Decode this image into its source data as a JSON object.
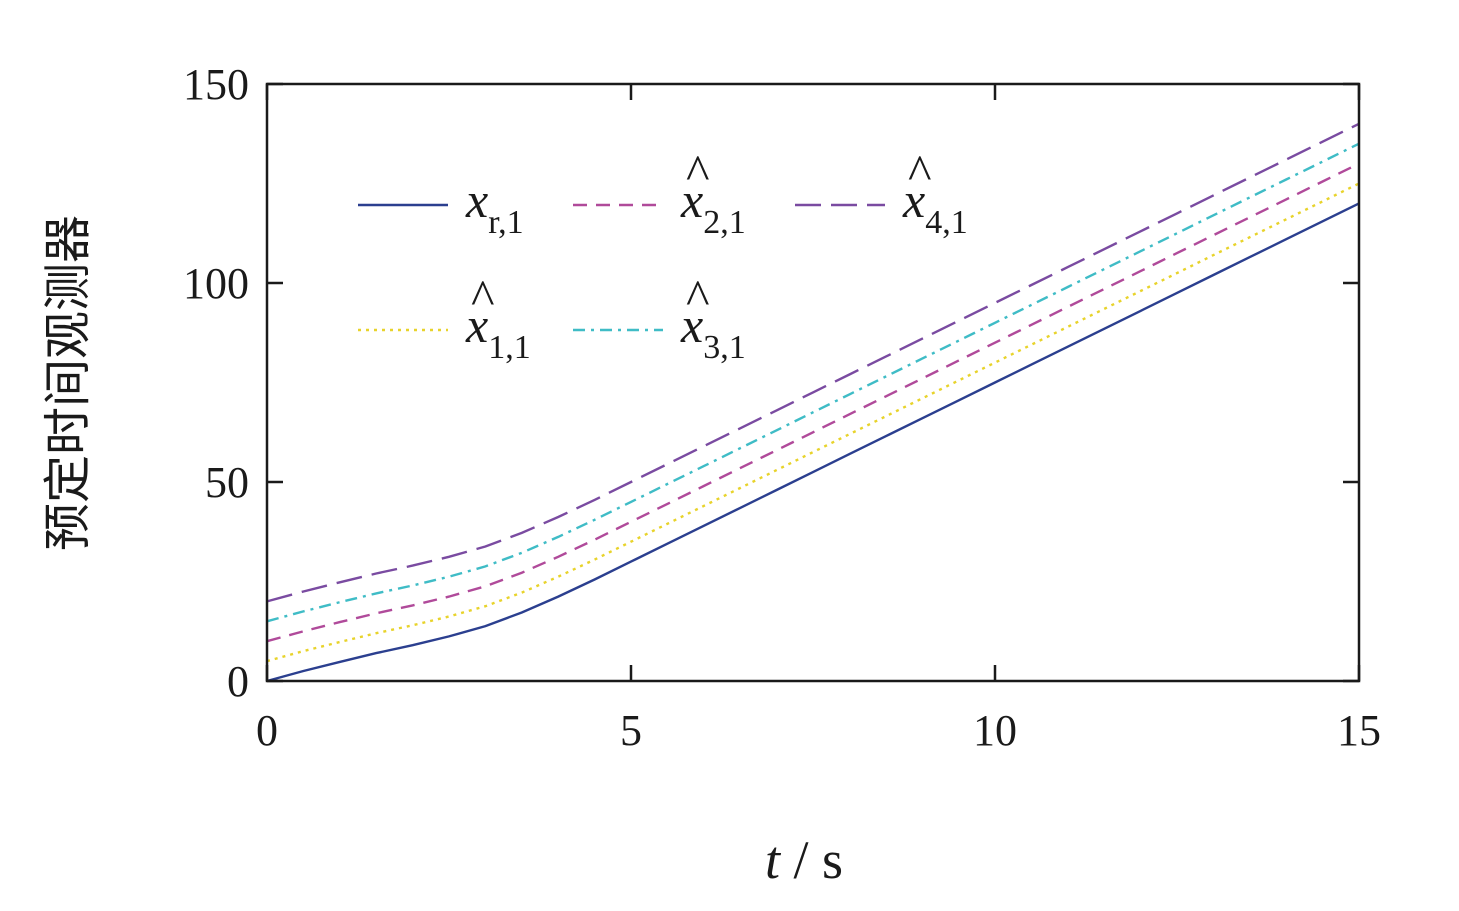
{
  "chart_data": {
    "type": "line",
    "xlabel": {
      "var": "t",
      "sep": " / ",
      "unit": "s"
    },
    "ylabel": "预定时间观测器",
    "xlim": [
      0,
      15
    ],
    "ylim": [
      0,
      150
    ],
    "xticks": [
      0,
      5,
      10,
      15
    ],
    "yticks": [
      0,
      50,
      100,
      150
    ],
    "x": [
      0,
      0.5,
      1,
      1.5,
      2,
      2.5,
      3,
      3.5,
      4,
      4.5,
      5,
      5.5,
      6,
      6.5,
      7,
      7.5,
      8,
      8.5,
      9,
      9.5,
      10,
      10.5,
      11,
      11.5,
      12,
      12.5,
      13,
      13.5,
      14,
      14.5,
      15
    ],
    "series": [
      {
        "name": "x",
        "sub": "r,1",
        "hat": false,
        "color": "#2b3f8f",
        "dash": "",
        "values": [
          0,
          2.5,
          4.8,
          7,
          9,
          11.2,
          13.8,
          17.2,
          21.2,
          25.5,
          30,
          34.5,
          39,
          43.5,
          48,
          52.5,
          57,
          61.5,
          66,
          70.5,
          75,
          79.5,
          84,
          88.5,
          93,
          97.5,
          102,
          106.5,
          111,
          115.5,
          120
        ]
      },
      {
        "name": "x",
        "sub": "1,1",
        "hat": true,
        "color": "#e8d32b",
        "dash": "3,5",
        "values": [
          5,
          7.5,
          9.8,
          12,
          14,
          16.2,
          18.8,
          22.2,
          26.2,
          30.5,
          35,
          39.5,
          44,
          48.5,
          53,
          57.5,
          62,
          66.5,
          71,
          75.5,
          80,
          84.5,
          89,
          93.5,
          98,
          102.5,
          107,
          111.5,
          116,
          120.5,
          125
        ]
      },
      {
        "name": "x",
        "sub": "2,1",
        "hat": true,
        "color": "#b04a9a",
        "dash": "14,9",
        "values": [
          10,
          12.5,
          14.8,
          17,
          19,
          21.2,
          23.8,
          27.2,
          31.2,
          35.5,
          40,
          44.5,
          49,
          53.5,
          58,
          62.5,
          67,
          71.5,
          76,
          80.5,
          85,
          89.5,
          94,
          98.5,
          103,
          107.5,
          112,
          116.5,
          121,
          125.5,
          130
        ]
      },
      {
        "name": "x",
        "sub": "3,1",
        "hat": true,
        "color": "#3fbcc6",
        "dash": "12,6,3,6",
        "values": [
          15,
          17.5,
          19.8,
          22,
          24,
          26.2,
          28.8,
          32.2,
          36.2,
          40.5,
          45,
          49.5,
          54,
          58.5,
          63,
          67.5,
          72,
          76.5,
          81,
          85.5,
          90,
          94.5,
          99,
          103.5,
          108,
          112.5,
          117,
          121.5,
          126,
          130.5,
          135
        ]
      },
      {
        "name": "x",
        "sub": "4,1",
        "hat": true,
        "color": "#7a4ba1",
        "dash": "26,10",
        "values": [
          20,
          22.5,
          24.8,
          27,
          29,
          31.2,
          33.8,
          37.2,
          41.2,
          45.5,
          50,
          54.5,
          59,
          63.5,
          68,
          72.5,
          77,
          81.5,
          86,
          90.5,
          95,
          99.5,
          104,
          108.5,
          113,
          117.5,
          122,
          126.5,
          131,
          135.5,
          140
        ]
      }
    ]
  }
}
